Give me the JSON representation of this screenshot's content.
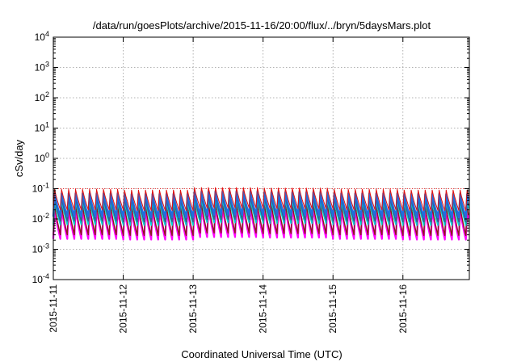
{
  "chart_data": {
    "type": "line",
    "title": "/data/run/goesPlots/archive/2015-11-16/20:00/flux/../bryn/5daysMars.plot",
    "xlabel": "Coordinated Universal Time (UTC)",
    "ylabel": "cSv/day",
    "yscale": "log",
    "ylim": [
      0.0001,
      10000
    ],
    "yticks": [
      {
        "value": 0.0001,
        "base": "10",
        "exp": "-4"
      },
      {
        "value": 0.001,
        "base": "10",
        "exp": "-3"
      },
      {
        "value": 0.01,
        "base": "10",
        "exp": "-2"
      },
      {
        "value": 0.1,
        "base": "10",
        "exp": "-1"
      },
      {
        "value": 1,
        "base": "10",
        "exp": "0"
      },
      {
        "value": 10,
        "base": "10",
        "exp": "1"
      },
      {
        "value": 100,
        "base": "10",
        "exp": "2"
      },
      {
        "value": 1000,
        "base": "10",
        "exp": "3"
      },
      {
        "value": 10000,
        "base": "10",
        "exp": "4"
      }
    ],
    "xlim": [
      0,
      5.95
    ],
    "x_unit": "days since 2015-11-11 00:00 UTC",
    "xticks": [
      {
        "value": 0,
        "label": "2015-11-11"
      },
      {
        "value": 1,
        "label": "2015-11-12"
      },
      {
        "value": 2,
        "label": "2015-11-13"
      },
      {
        "value": 3,
        "label": "2015-11-14"
      },
      {
        "value": 4,
        "label": "2015-11-15"
      },
      {
        "value": 5,
        "label": "2015-11-16"
      }
    ],
    "grid": true,
    "reference_line": {
      "value": 0.1,
      "color": "#ff0000",
      "style": "dotted"
    },
    "cycle_period_days": 0.1,
    "series": [
      {
        "name": "series-magenta",
        "color": "#ff00ff",
        "width": 2.2,
        "peak": 0.022,
        "trough": 0.0022
      },
      {
        "name": "series-dark-red",
        "color": "#8b1a1a",
        "width": 1.4,
        "peak": 0.028,
        "trough": 0.003
      },
      {
        "name": "series-cyan",
        "color": "#00d0d0",
        "width": 1.6,
        "peak": 0.04,
        "trough": 0.0065
      },
      {
        "name": "series-slate",
        "color": "#3a5a8c",
        "width": 1.4,
        "peak": 0.05,
        "trough": 0.0085
      },
      {
        "name": "series-blue",
        "color": "#1e6ee0",
        "width": 2.2,
        "peak": 0.07,
        "trough": 0.012
      },
      {
        "name": "series-red",
        "color": "#e01010",
        "width": 1.0,
        "peak": 0.095,
        "trough": 0.02
      }
    ],
    "envelope_by_day": [
      {
        "day": 0,
        "factor": 1.0
      },
      {
        "day": 1,
        "factor": 0.95
      },
      {
        "day": 2,
        "factor": 1.15
      },
      {
        "day": 3,
        "factor": 1.1
      },
      {
        "day": 4,
        "factor": 1.0
      },
      {
        "day": 5,
        "factor": 0.95
      }
    ]
  }
}
